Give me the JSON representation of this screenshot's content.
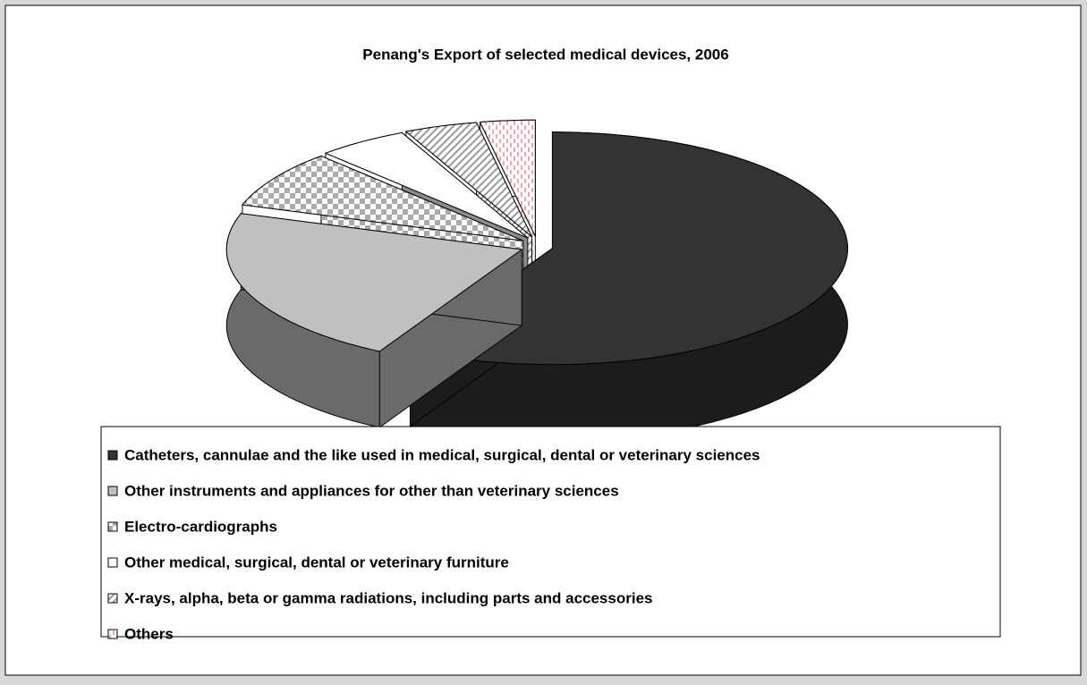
{
  "chart_data": {
    "type": "pie",
    "title": "Penang's Export of selected medical devices, 2006",
    "categories": [
      "Catheters, cannulae and the like used in medical, surgical, dental or veterinary sciences",
      "Other instruments and appliances for other than veterinary sciences",
      "Electro-cardiographs",
      "Other medical, surgical, dental or veterinary furniture",
      "X-rays, alpha, beta or gamma radiations, including parts and accessories",
      "Others"
    ],
    "values": [
      58,
      22,
      8,
      5,
      4,
      3
    ],
    "colors": [
      "#333333",
      "#c0c0c0",
      "url(#checker)",
      "#ffffff",
      "url(#hatch)",
      "url(#dash)"
    ],
    "legend": "bottom"
  }
}
